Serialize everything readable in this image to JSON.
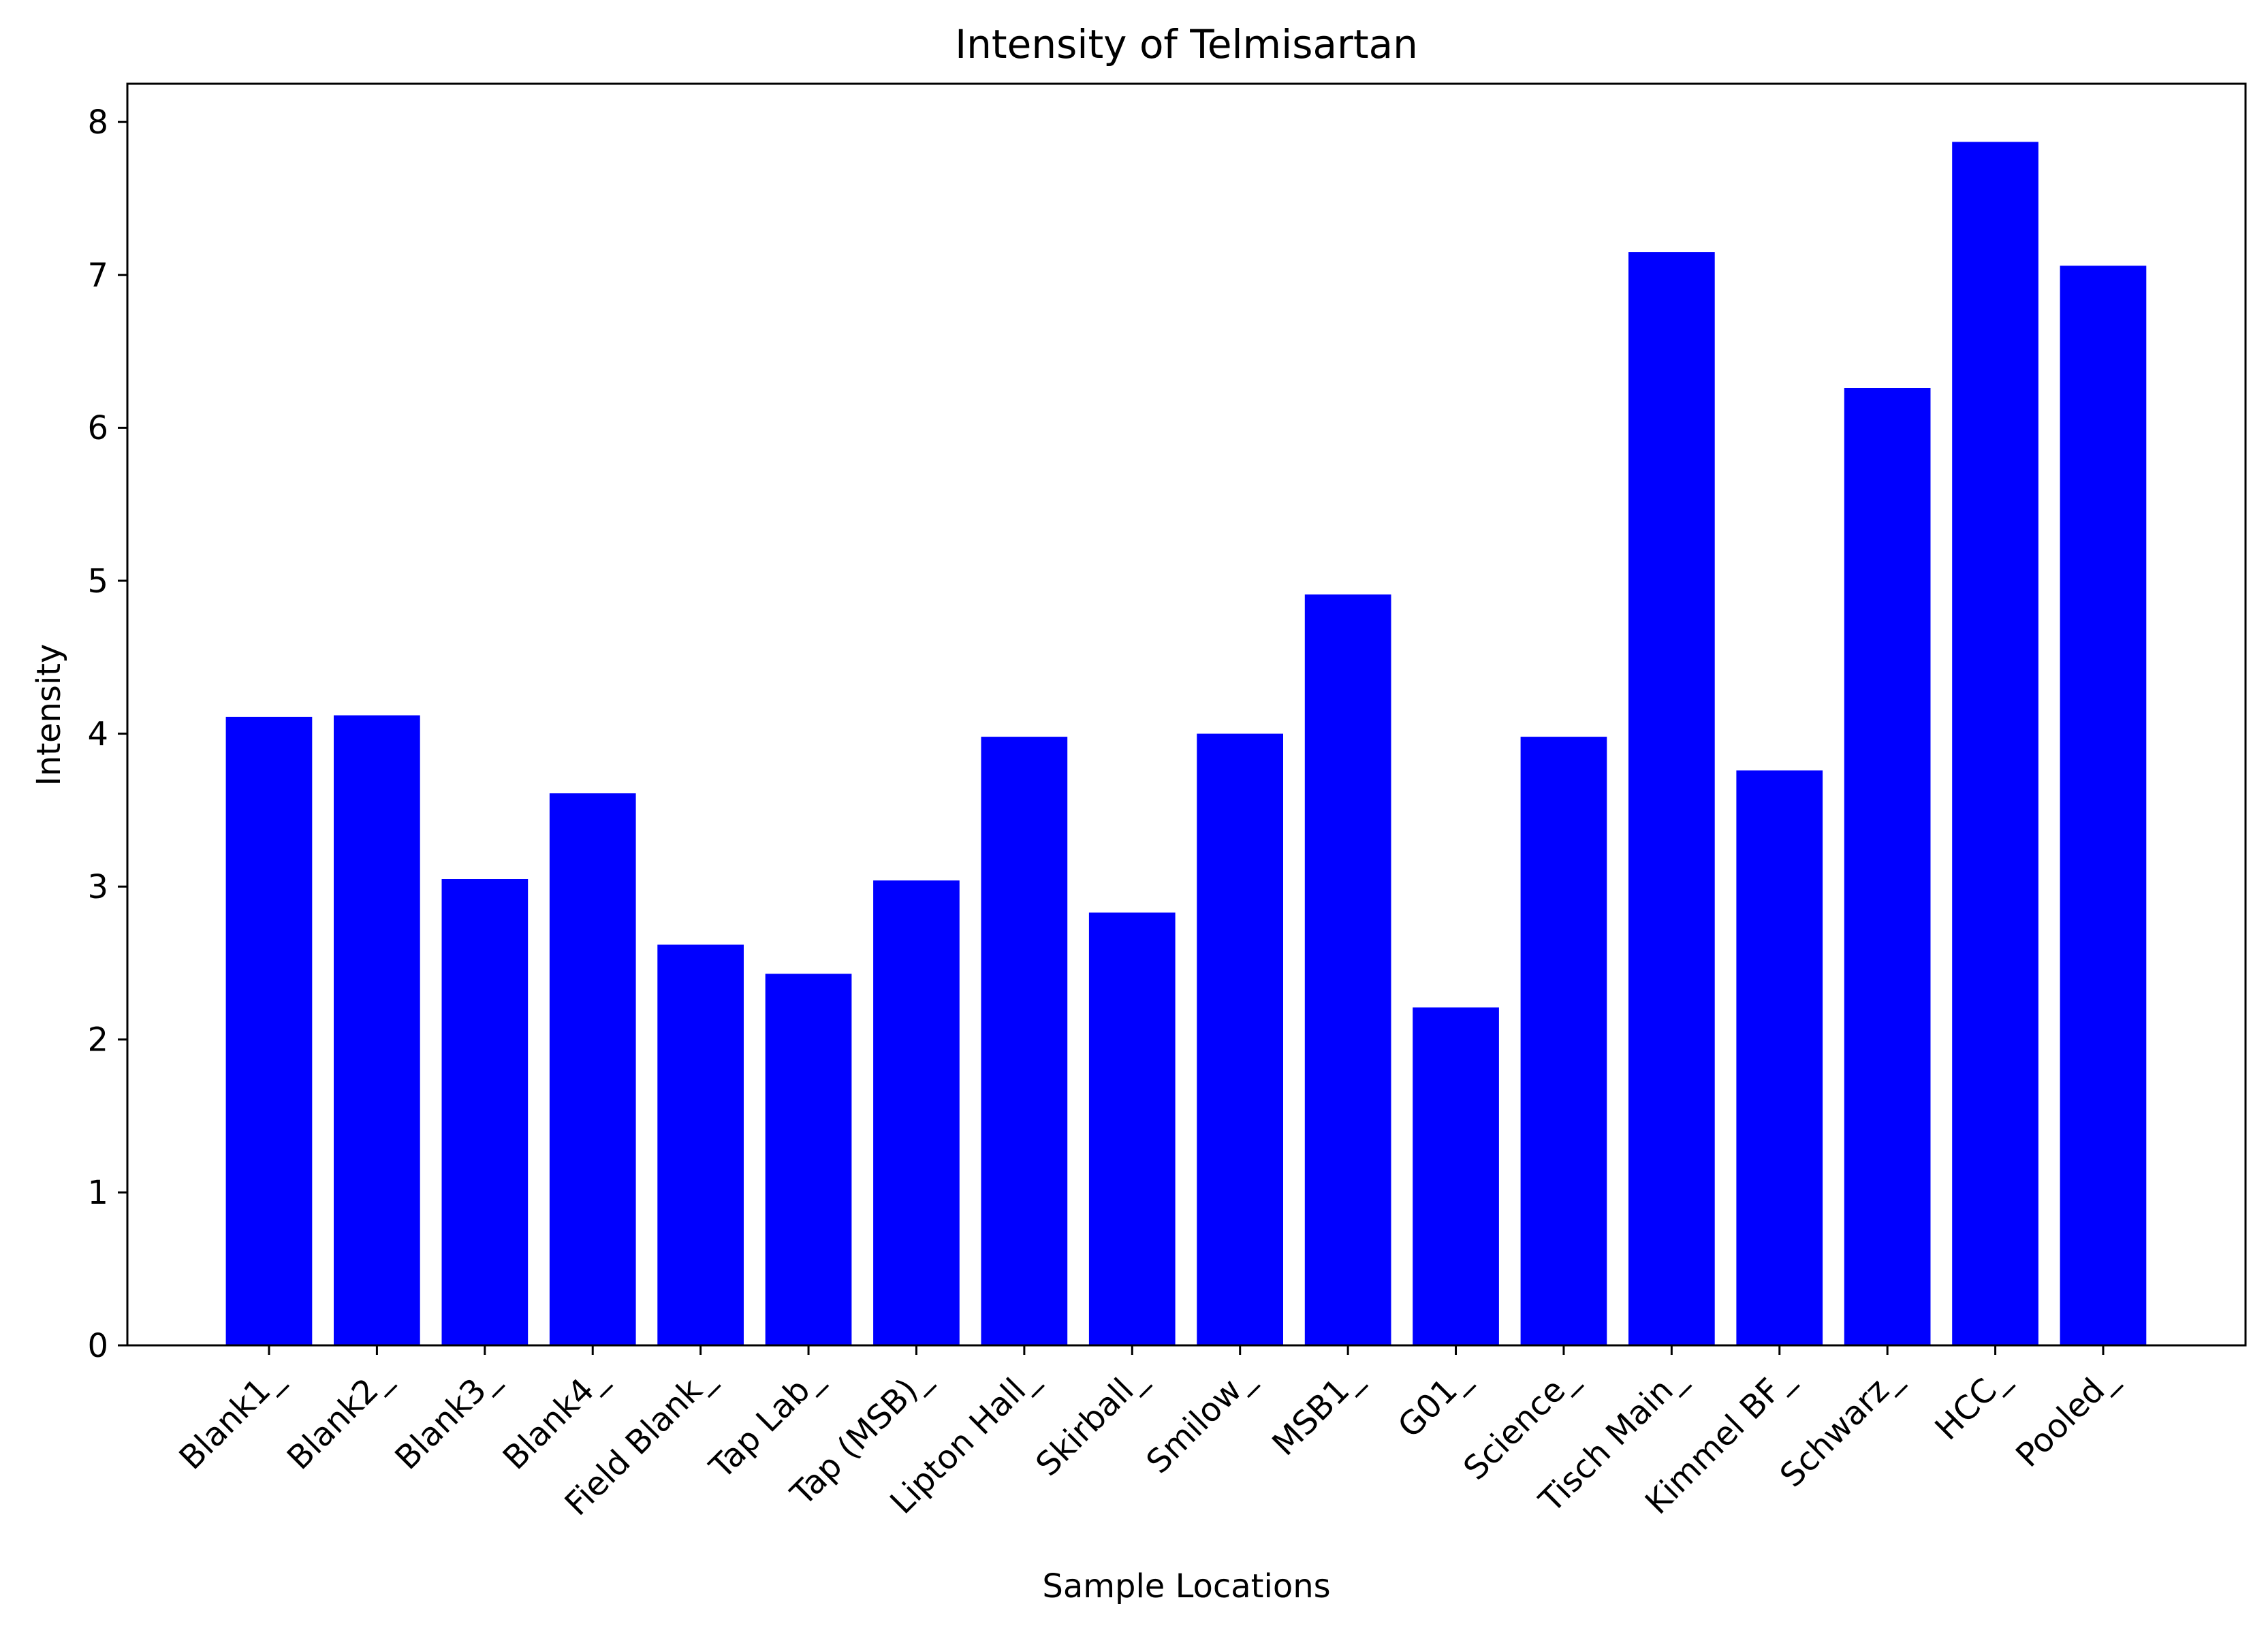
{
  "chart_data": {
    "type": "bar",
    "title": "Intensity of Telmisartan",
    "xlabel": "Sample Locations",
    "ylabel": "Intensity",
    "categories": [
      "Blank1_",
      "Blank2_",
      "Blank3_",
      "Blank4_",
      "Field Blank_",
      "Tap Lab_",
      "Tap (MSB)_",
      "Lipton Hall_",
      "Skirball_",
      "Smilow_",
      "MSB1_",
      "G01_",
      "Science_",
      "Tisch Main_",
      "Kimmel BF_",
      "Schwarz_",
      "HCC_",
      "Pooled_"
    ],
    "values": [
      4.11,
      4.12,
      3.05,
      3.61,
      2.62,
      2.43,
      3.04,
      3.98,
      2.83,
      4.0,
      4.91,
      2.21,
      3.98,
      7.15,
      3.76,
      6.26,
      7.87,
      7.06
    ],
    "ylim": [
      0,
      8.25
    ],
    "yticks": [
      0,
      1,
      2,
      3,
      4,
      5,
      6,
      7,
      8
    ],
    "bar_color": "#0000ff",
    "grid": false
  }
}
